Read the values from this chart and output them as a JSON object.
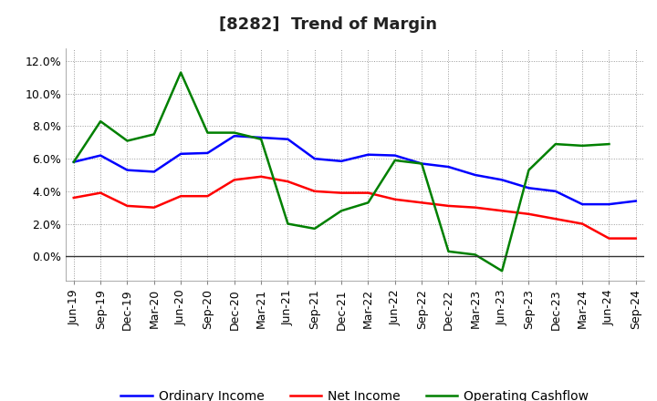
{
  "title": "[8282]  Trend of Margin",
  "x_labels": [
    "Jun-19",
    "Sep-19",
    "Dec-19",
    "Mar-20",
    "Jun-20",
    "Sep-20",
    "Dec-20",
    "Mar-21",
    "Jun-21",
    "Sep-21",
    "Dec-21",
    "Mar-22",
    "Jun-22",
    "Sep-22",
    "Dec-22",
    "Mar-23",
    "Jun-23",
    "Sep-23",
    "Dec-23",
    "Mar-24",
    "Jun-24",
    "Sep-24"
  ],
  "ordinary_income": [
    5.8,
    6.2,
    5.3,
    5.2,
    6.3,
    6.35,
    7.4,
    7.3,
    7.2,
    6.0,
    5.85,
    6.25,
    6.2,
    5.7,
    5.5,
    5.0,
    4.7,
    4.2,
    4.0,
    3.2,
    3.2,
    3.4
  ],
  "net_income": [
    3.6,
    3.9,
    3.1,
    3.0,
    3.7,
    3.7,
    4.7,
    4.9,
    4.6,
    4.0,
    3.9,
    3.9,
    3.5,
    3.3,
    3.1,
    3.0,
    2.8,
    2.6,
    2.3,
    2.0,
    1.1,
    1.1
  ],
  "operating_cashflow": [
    5.8,
    8.3,
    7.1,
    7.5,
    11.3,
    7.6,
    7.6,
    7.2,
    2.0,
    1.7,
    2.8,
    3.3,
    5.9,
    5.7,
    0.3,
    0.1,
    -0.9,
    5.3,
    6.9,
    6.8,
    6.9,
    null
  ],
  "ylim": [
    -1.5,
    12.8
  ],
  "yticks": [
    0.0,
    2.0,
    4.0,
    6.0,
    8.0,
    10.0,
    12.0
  ],
  "line_colors": {
    "ordinary_income": "#0000ff",
    "net_income": "#ff0000",
    "operating_cashflow": "#008000"
  },
  "legend_labels": [
    "Ordinary Income",
    "Net Income",
    "Operating Cashflow"
  ],
  "background_color": "#ffffff",
  "grid_color": "#999999",
  "title_fontsize": 13,
  "tick_fontsize": 9,
  "legend_fontsize": 10,
  "linewidth": 1.8
}
